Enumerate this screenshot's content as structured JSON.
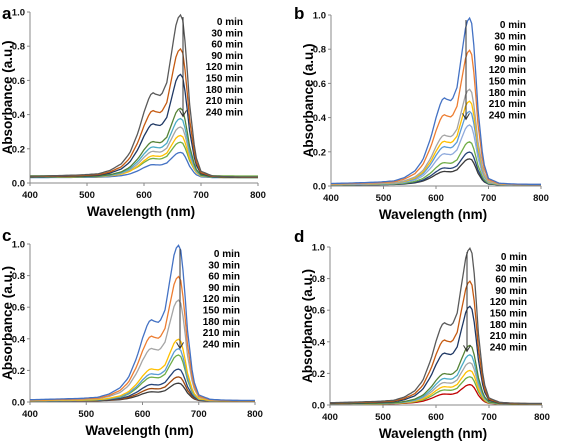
{
  "chart_data": [
    {
      "type": "line",
      "panel_label": "a",
      "xlabel": "Wavelength (nm)",
      "ylabel": "Absorbance (a.u.)",
      "xlim": [
        400,
        800
      ],
      "ylim": [
        0,
        1.0
      ],
      "xticks": [
        "400",
        "500",
        "600",
        "700",
        "800"
      ],
      "yticks": [
        "0.0",
        "0.2",
        "0.4",
        "0.6",
        "0.8",
        "1.0"
      ],
      "legend_position": "top-right",
      "legend_direction": "downward arrow from 0 min to 240 min",
      "series": [
        {
          "name": "0 min",
          "color": "#5a5a5a",
          "peak": 0.99,
          "baseline": 0.03
        },
        {
          "name": "30 min",
          "color": "#c55a11",
          "peak": 0.79,
          "baseline": 0.03
        },
        {
          "name": "60 min",
          "color": "#1f3864",
          "peak": 0.64,
          "baseline": 0.03
        },
        {
          "name": "90 min",
          "color": "#548235",
          "peak": 0.44,
          "baseline": 0.03
        },
        {
          "name": "120 min",
          "color": "#4bacc6",
          "peak": 0.38,
          "baseline": 0.03
        },
        {
          "name": "150 min",
          "color": "#a5a5a5",
          "peak": 0.33,
          "baseline": 0.03
        },
        {
          "name": "180 min",
          "color": "#ffc000",
          "peak": 0.28,
          "baseline": 0.03
        },
        {
          "name": "210 min",
          "color": "#70ad47",
          "peak": 0.24,
          "baseline": 0.04
        },
        {
          "name": "240 min",
          "color": "#4472c4",
          "peak": 0.18,
          "baseline": 0.03
        }
      ]
    },
    {
      "type": "line",
      "panel_label": "b",
      "xlabel": "Wavelength (nm)",
      "ylabel": "Absorbance (a.u.)",
      "xlim": [
        400,
        800
      ],
      "ylim": [
        0,
        1.0
      ],
      "xticks": [
        "400",
        "500",
        "600",
        "700",
        "800"
      ],
      "yticks": [
        "0.0",
        "0.2",
        "0.4",
        "0.6",
        "0.8",
        "1.0"
      ],
      "legend_position": "top-right",
      "legend_direction": "downward arrow from 0 min to 240 min",
      "series": [
        {
          "name": "0 min",
          "color": "#4472c4",
          "peak": 0.99,
          "baseline": 0.005
        },
        {
          "name": "30 min",
          "color": "#ed7d31",
          "peak": 0.8,
          "baseline": 0.005
        },
        {
          "name": "60 min",
          "color": "#a5a5a5",
          "peak": 0.57,
          "baseline": 0.005
        },
        {
          "name": "90 min",
          "color": "#ffc000",
          "peak": 0.5,
          "baseline": 0.005
        },
        {
          "name": "120 min",
          "color": "#5b9bd5",
          "peak": 0.44,
          "baseline": 0.005
        },
        {
          "name": "150 min",
          "color": "#8faadc",
          "peak": 0.36,
          "baseline": 0.005
        },
        {
          "name": "180 min",
          "color": "#70ad47",
          "peak": 0.26,
          "baseline": 0.005
        },
        {
          "name": "210 min",
          "color": "#264478",
          "peak": 0.2,
          "baseline": 0.005
        },
        {
          "name": "240 min",
          "color": "#3b3b3b",
          "peak": 0.16,
          "baseline": 0.005
        }
      ]
    },
    {
      "type": "line",
      "panel_label": "c",
      "xlabel": "Wavelength (nm)",
      "ylabel": "Absorbance (a.u.)",
      "xlim": [
        400,
        800
      ],
      "ylim": [
        0,
        1.0
      ],
      "xticks": [
        "400",
        "500",
        "600",
        "700",
        "800"
      ],
      "yticks": [
        "0.0",
        "0.2",
        "0.4",
        "0.6",
        "0.8",
        "1.0"
      ],
      "legend_position": "top-right",
      "legend_direction": "downward arrow from 0 min to 240 min",
      "series": [
        {
          "name": "0 min",
          "color": "#4472c4",
          "peak": 1.0,
          "baseline": 0.005
        },
        {
          "name": "30 min",
          "color": "#ed7d31",
          "peak": 0.8,
          "baseline": 0.005
        },
        {
          "name": "60 min",
          "color": "#a5a5a5",
          "peak": 0.65,
          "baseline": 0.005
        },
        {
          "name": "90 min",
          "color": "#ffc000",
          "peak": 0.4,
          "baseline": 0.005
        },
        {
          "name": "120 min",
          "color": "#5b9bd5",
          "peak": 0.34,
          "baseline": 0.005
        },
        {
          "name": "150 min",
          "color": "#70ad47",
          "peak": 0.3,
          "baseline": 0.005
        },
        {
          "name": "180 min",
          "color": "#264478",
          "peak": 0.21,
          "baseline": 0.005
        },
        {
          "name": "210 min",
          "color": "#9e480e",
          "peak": 0.16,
          "baseline": 0.005
        },
        {
          "name": "240 min",
          "color": "#3b3b3b",
          "peak": 0.12,
          "baseline": 0.005
        }
      ]
    },
    {
      "type": "line",
      "panel_label": "d",
      "xlabel": "Wavelength (nm)",
      "ylabel": "Absorbance (a.u.)",
      "xlim": [
        400,
        800
      ],
      "ylim": [
        0,
        1.0
      ],
      "xticks": [
        "400",
        "500",
        "600",
        "700",
        "800"
      ],
      "yticks": [
        "0.0",
        "0.2",
        "0.4",
        "0.6",
        "0.8",
        "1.0"
      ],
      "legend_position": "top-right",
      "legend_direction": "downward arrow from 0 min to 240 min",
      "series": [
        {
          "name": "0 min",
          "color": "#5a5a5a",
          "peak": 1.0,
          "baseline": 0.005
        },
        {
          "name": "30 min",
          "color": "#c55a11",
          "peak": 0.79,
          "baseline": 0.005
        },
        {
          "name": "60 min",
          "color": "#1f3864",
          "peak": 0.63,
          "baseline": 0.005
        },
        {
          "name": "90 min",
          "color": "#548235",
          "peak": 0.38,
          "baseline": 0.005
        },
        {
          "name": "120 min",
          "color": "#4bacc6",
          "peak": 0.32,
          "baseline": 0.005
        },
        {
          "name": "150 min",
          "color": "#a5a5a5",
          "peak": 0.27,
          "baseline": 0.005
        },
        {
          "name": "180 min",
          "color": "#ffc000",
          "peak": 0.22,
          "baseline": 0.005
        },
        {
          "name": "210 min",
          "color": "#70ad47",
          "peak": 0.18,
          "baseline": 0.005
        },
        {
          "name": "240 min",
          "color": "#c00000",
          "peak": 0.13,
          "baseline": 0.005
        }
      ]
    }
  ]
}
